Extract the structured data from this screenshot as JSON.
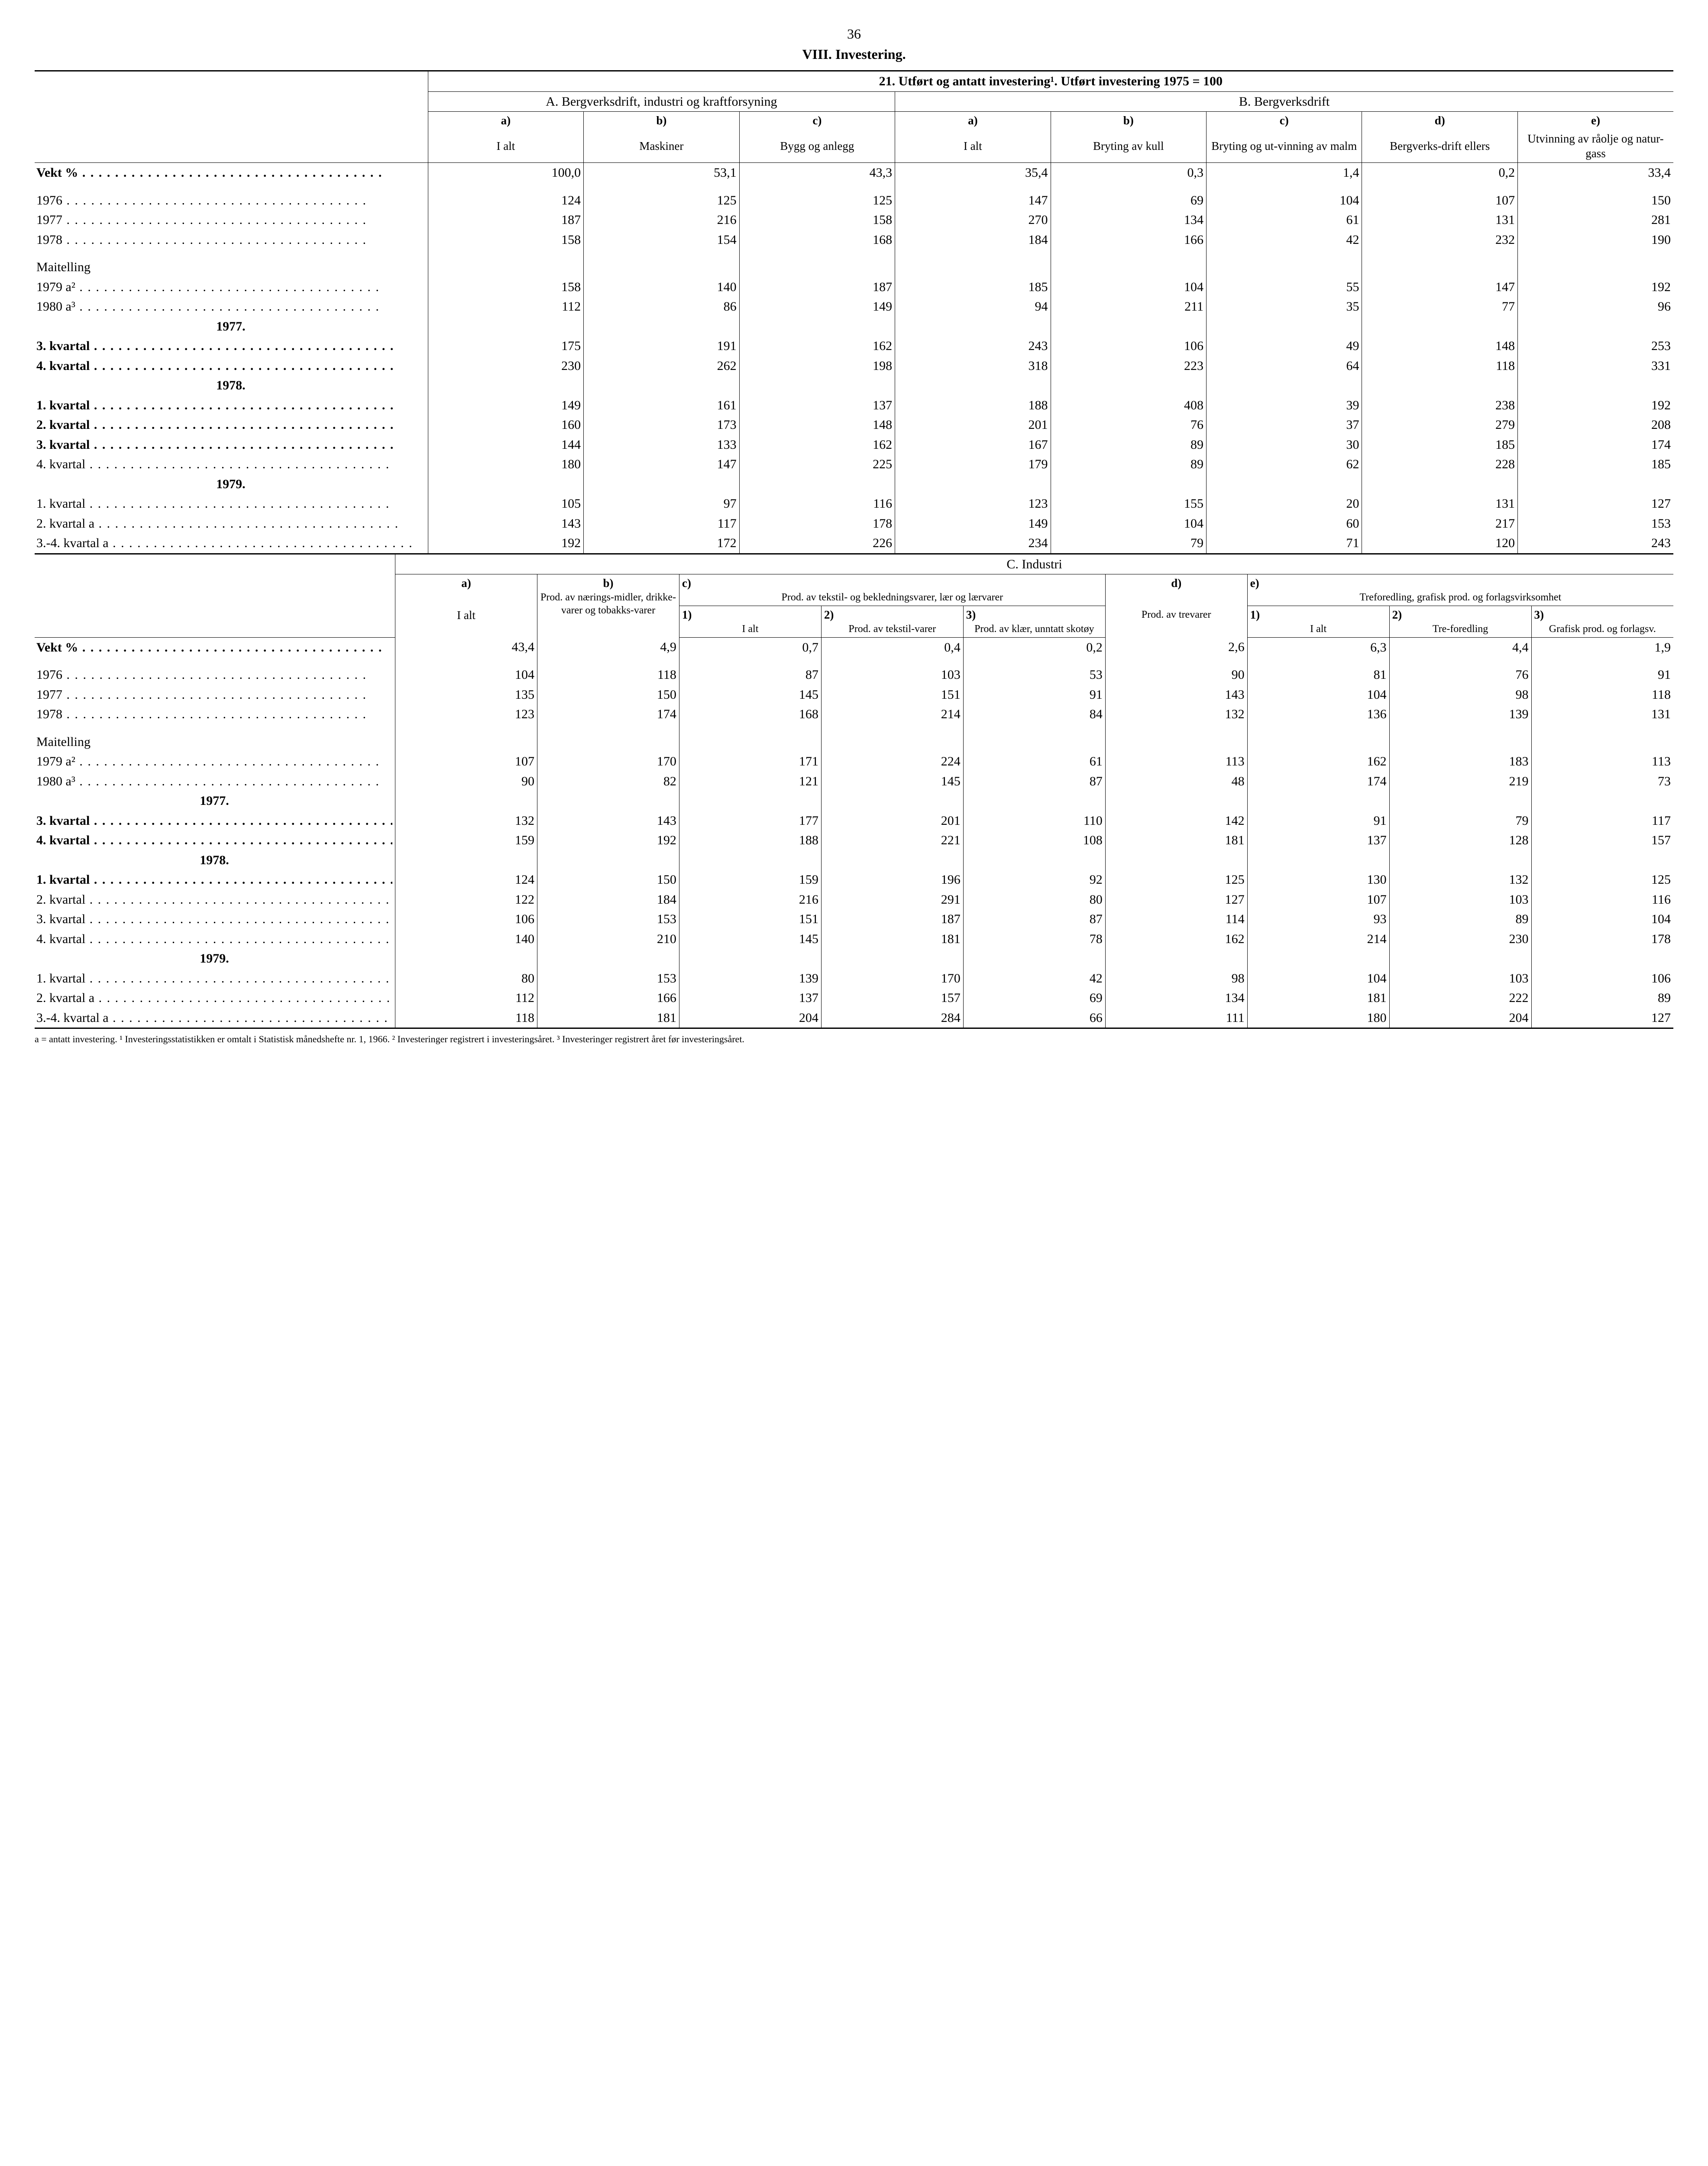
{
  "page_number": "36",
  "section_title": "VIII.  Investering.",
  "table1": {
    "banner": "21. Utført og antatt investering¹. Utført investering 1975 = 100",
    "groupA_title": "A. Bergverksdrift, industri og kraftforsyning",
    "groupB_title": "B.  Bergverksdrift",
    "cols": {
      "a1_letter": "a)",
      "a1_label": "I  alt",
      "a2_letter": "b)",
      "a2_label": "Maskiner",
      "a3_letter": "c)",
      "a3_label": "Bygg og anlegg",
      "b1_letter": "a)",
      "b1_label": "I  alt",
      "b2_letter": "b)",
      "b2_label": "Bryting av kull",
      "b3_letter": "c)",
      "b3_label": "Bryting og ut-vinning av malm",
      "b4_letter": "d)",
      "b4_label": "Bergverks-drift ellers",
      "b5_letter": "e)",
      "b5_label": "Utvinning av råolje og natur-gass"
    },
    "rows": [
      {
        "label": "Vekt %",
        "bold": true,
        "v": [
          "100,0",
          "53,1",
          "43,3",
          "35,4",
          "0,3",
          "1,4",
          "0,2",
          "33,4"
        ]
      },
      {
        "spacer": true
      },
      {
        "label": "1976",
        "v": [
          "124",
          "125",
          "125",
          "147",
          "69",
          "104",
          "107",
          "150"
        ]
      },
      {
        "label": "1977",
        "v": [
          "187",
          "216",
          "158",
          "270",
          "134",
          "61",
          "131",
          "281"
        ]
      },
      {
        "label": "1978",
        "v": [
          "158",
          "154",
          "168",
          "184",
          "166",
          "42",
          "232",
          "190"
        ]
      },
      {
        "spacer": true
      },
      {
        "label": "Maitelling",
        "nodots": true,
        "v": [
          "",
          "",
          "",
          "",
          "",
          "",
          "",
          ""
        ]
      },
      {
        "label": "1979 a²",
        "v": [
          "158",
          "140",
          "187",
          "185",
          "104",
          "55",
          "147",
          "192"
        ]
      },
      {
        "label": "1980 a³",
        "v": [
          "112",
          "86",
          "149",
          "94",
          "211",
          "35",
          "77",
          "96"
        ]
      },
      {
        "header": "1977."
      },
      {
        "label": "3. kvartal",
        "bold": true,
        "v": [
          "175",
          "191",
          "162",
          "243",
          "106",
          "49",
          "148",
          "253"
        ]
      },
      {
        "label": "4. kvartal",
        "bold": true,
        "v": [
          "230",
          "262",
          "198",
          "318",
          "223",
          "64",
          "118",
          "331"
        ]
      },
      {
        "header": "1978."
      },
      {
        "label": "1. kvartal",
        "bold": true,
        "v": [
          "149",
          "161",
          "137",
          "188",
          "408",
          "39",
          "238",
          "192"
        ]
      },
      {
        "label": "2. kvartal",
        "bold": true,
        "v": [
          "160",
          "173",
          "148",
          "201",
          "76",
          "37",
          "279",
          "208"
        ]
      },
      {
        "label": "3. kvartal",
        "bold": true,
        "v": [
          "144",
          "133",
          "162",
          "167",
          "89",
          "30",
          "185",
          "174"
        ]
      },
      {
        "label": "4. kvartal",
        "v": [
          "180",
          "147",
          "225",
          "179",
          "89",
          "62",
          "228",
          "185"
        ]
      },
      {
        "header": "1979."
      },
      {
        "label": "1. kvartal",
        "v": [
          "105",
          "97",
          "116",
          "123",
          "155",
          "20",
          "131",
          "127"
        ]
      },
      {
        "label": "2. kvartal a",
        "v": [
          "143",
          "117",
          "178",
          "149",
          "104",
          "60",
          "217",
          "153"
        ]
      },
      {
        "label": "3.-4. kvartal a",
        "v": [
          "192",
          "172",
          "226",
          "234",
          "79",
          "71",
          "120",
          "243"
        ]
      }
    ]
  },
  "table2": {
    "banner": "C.   Industri",
    "cols": {
      "a_letter": "a)",
      "a_label": "I alt",
      "b_letter": "b)",
      "b_label": "Prod. av nærings-midler, drikke-varer og tobakks-varer",
      "c_letter": "c)",
      "c_title": "Prod. av tekstil- og bekledningsvarer, lær og lærvarer",
      "c1_letter": "1)",
      "c1_label": "I alt",
      "c2_letter": "2)",
      "c2_label": "Prod. av tekstil-varer",
      "c3_letter": "3)",
      "c3_label": "Prod. av klær, unntatt skotøy",
      "d_letter": "d)",
      "d_label": "Prod. av trevarer",
      "e_letter": "e)",
      "e_title": "Treforedling, grafisk prod. og forlagsvirksomhet",
      "e1_letter": "1)",
      "e1_label": "I alt",
      "e2_letter": "2)",
      "e2_label": "Tre-foredling",
      "e3_letter": "3)",
      "e3_label": "Grafisk prod. og forlagsv."
    },
    "rows": [
      {
        "label": "Vekt %",
        "bold": true,
        "v": [
          "43,4",
          "4,9",
          "0,7",
          "0,4",
          "0,2",
          "2,6",
          "6,3",
          "4,4",
          "1,9"
        ]
      },
      {
        "spacer": true
      },
      {
        "label": "1976",
        "v": [
          "104",
          "118",
          "87",
          "103",
          "53",
          "90",
          "81",
          "76",
          "91"
        ]
      },
      {
        "label": "1977",
        "v": [
          "135",
          "150",
          "145",
          "151",
          "91",
          "143",
          "104",
          "98",
          "118"
        ]
      },
      {
        "label": "1978",
        "v": [
          "123",
          "174",
          "168",
          "214",
          "84",
          "132",
          "136",
          "139",
          "131"
        ]
      },
      {
        "spacer": true
      },
      {
        "label": "Maitelling",
        "nodots": true,
        "v": [
          "",
          "",
          "",
          "",
          "",
          "",
          "",
          "",
          ""
        ]
      },
      {
        "label": "1979 a²",
        "v": [
          "107",
          "170",
          "171",
          "224",
          "61",
          "113",
          "162",
          "183",
          "113"
        ]
      },
      {
        "label": "1980 a³",
        "v": [
          "90",
          "82",
          "121",
          "145",
          "87",
          "48",
          "174",
          "219",
          "73"
        ]
      },
      {
        "header": "1977."
      },
      {
        "label": "3. kvartal",
        "bold": true,
        "v": [
          "132",
          "143",
          "177",
          "201",
          "110",
          "142",
          "91",
          "79",
          "117"
        ]
      },
      {
        "label": "4. kvartal",
        "bold": true,
        "v": [
          "159",
          "192",
          "188",
          "221",
          "108",
          "181",
          "137",
          "128",
          "157"
        ]
      },
      {
        "header": "1978."
      },
      {
        "label": "1. kvartal",
        "bold": true,
        "v": [
          "124",
          "150",
          "159",
          "196",
          "92",
          "125",
          "130",
          "132",
          "125"
        ]
      },
      {
        "label": "2. kvartal",
        "v": [
          "122",
          "184",
          "216",
          "291",
          "80",
          "127",
          "107",
          "103",
          "116"
        ]
      },
      {
        "label": "3. kvartal",
        "v": [
          "106",
          "153",
          "151",
          "187",
          "87",
          "114",
          "93",
          "89",
          "104"
        ]
      },
      {
        "label": "4. kvartal",
        "v": [
          "140",
          "210",
          "145",
          "181",
          "78",
          "162",
          "214",
          "230",
          "178"
        ]
      },
      {
        "header": "1979."
      },
      {
        "label": "1. kvartal",
        "v": [
          "80",
          "153",
          "139",
          "170",
          "42",
          "98",
          "104",
          "103",
          "106"
        ]
      },
      {
        "label": "2. kvartal a",
        "v": [
          "112",
          "166",
          "137",
          "157",
          "69",
          "134",
          "181",
          "222",
          "89"
        ]
      },
      {
        "label": "3.-4. kvartal a",
        "v": [
          "118",
          "181",
          "204",
          "284",
          "66",
          "111",
          "180",
          "204",
          "127"
        ]
      }
    ]
  },
  "footnote": "a = antatt investering.  ¹ Investeringsstatistikken er omtalt i Statistisk månedshefte nr. 1, 1966.  ² Investeringer registrert i investeringsåret.  ³ Investeringer registrert året før investeringsåret."
}
